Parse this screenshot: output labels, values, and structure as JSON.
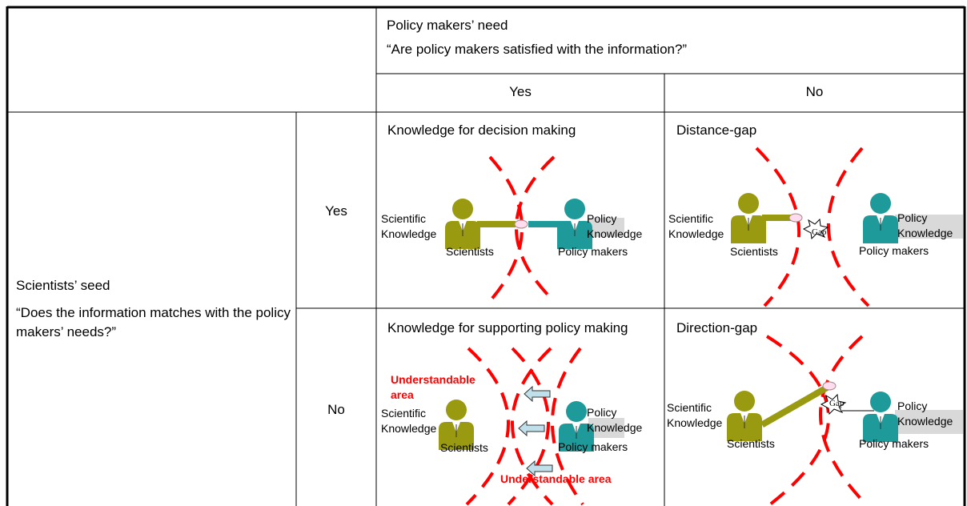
{
  "table": {
    "header": {
      "title": "Policy makers’ need",
      "question": "“Are policy makers satisfied with the information?”",
      "columns": [
        "Yes",
        "No"
      ]
    },
    "row_header": {
      "title": "Scientists’ seed",
      "question": "“Does the information matches with the policy makers’ needs?”",
      "rows": [
        "Yes",
        "No"
      ]
    },
    "cells": [
      [
        {
          "title": "Knowledge for decision making",
          "scientific_knowledge": "Scientific Knowledge",
          "policy_knowledge": "Policy Knowledge",
          "scientists": "Scientists",
          "policy_makers": "Policy makers"
        },
        {
          "title": "Distance-gap",
          "scientific_knowledge": "Scientific Knowledge",
          "policy_knowledge": "Policy Knowledge",
          "scientists": "Scientists",
          "policy_makers": "Policy makers",
          "gap": "Gap"
        }
      ],
      [
        {
          "title": "Knowledge for supporting policy making",
          "scientific_knowledge": "Scientific Knowledge",
          "policy_knowledge": "Policy Knowledge",
          "scientists": "Scientists",
          "policy_makers": "Policy makers",
          "areas": [
            "Understandable area",
            "Understandable area"
          ]
        },
        {
          "title": "Direction-gap",
          "scientific_knowledge": "Scientific Knowledge",
          "policy_knowledge": "Policy Knowledge",
          "scientists": "Scientists",
          "policy_makers": "Policy makers",
          "gap": "Gap"
        }
      ]
    ]
  }
}
